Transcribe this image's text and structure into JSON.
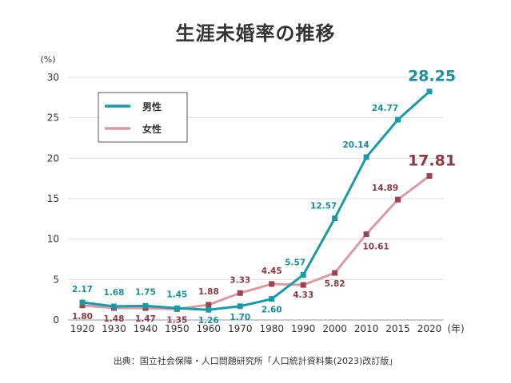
{
  "title": "生涯未婚率の推移",
  "source": "出典：国立社会保障・人口問題研究所「人口統計資料集(2023)改訂版」",
  "chart_data": {
    "type": "line",
    "y_unit_label": "(%)",
    "x_unit_label": "(年)",
    "x": [
      "1920",
      "1930",
      "1940",
      "1950",
      "1960",
      "1970",
      "1980",
      "1990",
      "2000",
      "2010",
      "2015",
      "2020"
    ],
    "ylim": [
      0,
      30
    ],
    "yticks": [
      "0",
      "5",
      "10",
      "15",
      "20",
      "25",
      "30"
    ],
    "grid": true,
    "legend_position": "top-left",
    "series": [
      {
        "name": "男性",
        "color": "#1a9aa6",
        "values": [
          2.17,
          1.68,
          1.75,
          1.45,
          1.26,
          1.7,
          2.6,
          5.57,
          12.57,
          20.14,
          24.77,
          28.25
        ],
        "labels": [
          "2.17",
          "1.68",
          "1.75",
          "1.45",
          "1.26",
          "1.70",
          "2.60",
          "5.57",
          "12.57",
          "20.14",
          "24.77",
          "28.25"
        ]
      },
      {
        "name": "女性",
        "color": "#d99aa5",
        "marker_color": "#9b4450",
        "label_color": "#8b3a44",
        "values": [
          1.8,
          1.48,
          1.47,
          1.35,
          1.88,
          3.33,
          4.45,
          4.33,
          5.82,
          10.61,
          14.89,
          17.81
        ],
        "labels": [
          "1.80",
          "1.48",
          "1.47",
          "1.35",
          "1.88",
          "3.33",
          "4.45",
          "4.33",
          "5.82",
          "10.61",
          "14.89",
          "17.81"
        ]
      }
    ]
  }
}
